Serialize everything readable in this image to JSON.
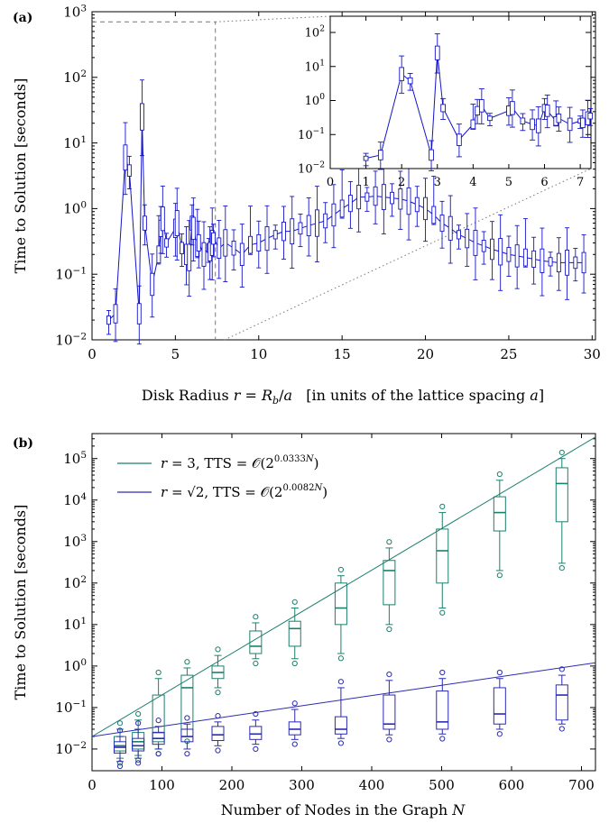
{
  "chart_data": [
    {
      "panel_label": "(a)",
      "type": "line",
      "xlabel": "Disk Radius r = R_b/a   [in units of the lattice spacing a]",
      "xlabel_html": {
        "prefix": "Disk Radius ",
        "var_r": "r",
        "eq": " = ",
        "var_R": "R",
        "sub": "b",
        "slash": "/",
        "var_a": "a",
        "suffix": "   [in units of the lattice spacing ",
        "var_a2": "a",
        "close": "]"
      },
      "ylabel": "Time to Solution [seconds]",
      "xlim": [
        0,
        30.2
      ],
      "ylim": [
        0.01,
        1000
      ],
      "y_scale": "log",
      "xticks": [
        0,
        5,
        10,
        15,
        20,
        25,
        30
      ],
      "yticks": [
        0.01,
        0.1,
        1,
        10,
        100,
        1000
      ],
      "color": "#1414c8",
      "x": [
        1.0,
        1.41,
        2.0,
        2.24,
        2.83,
        3.0,
        3.16,
        3.61,
        4.0,
        4.12,
        4.24,
        4.47,
        5.0,
        5.1,
        5.39,
        5.66,
        5.83,
        6.0,
        6.08,
        6.32,
        6.4,
        6.71,
        7.0,
        7.07,
        7.21,
        7.28,
        7.62,
        8.0,
        8.5,
        9.0,
        9.5,
        10.0,
        10.5,
        11.0,
        11.5,
        12.0,
        12.5,
        13.0,
        13.5,
        14.0,
        14.5,
        15.0,
        15.5,
        16.0,
        16.5,
        17.0,
        17.5,
        18.0,
        18.5,
        19.0,
        19.5,
        20.0,
        20.5,
        21.0,
        21.5,
        22.0,
        22.5,
        23.0,
        23.5,
        24.0,
        24.5,
        25.0,
        25.5,
        26.0,
        26.5,
        27.0,
        27.5,
        28.0,
        28.5,
        29.0,
        29.5
      ],
      "y": [
        0.02,
        0.025,
        6.0,
        3.8,
        0.025,
        25.0,
        0.6,
        0.07,
        0.2,
        0.5,
        0.7,
        0.3,
        0.5,
        0.6,
        0.25,
        0.2,
        0.18,
        0.6,
        0.5,
        0.25,
        0.3,
        0.2,
        0.25,
        0.22,
        0.3,
        0.35,
        0.25,
        0.3,
        0.25,
        0.2,
        0.28,
        0.3,
        0.35,
        0.4,
        0.45,
        0.45,
        0.5,
        0.55,
        0.6,
        0.65,
        0.8,
        1.0,
        1.2,
        1.5,
        1.5,
        1.55,
        1.5,
        1.45,
        1.4,
        1.3,
        1.15,
        1.0,
        0.8,
        0.6,
        0.5,
        0.4,
        0.35,
        0.3,
        0.27,
        0.24,
        0.22,
        0.2,
        0.19,
        0.18,
        0.17,
        0.16,
        0.155,
        0.15,
        0.15,
        0.15,
        0.15
      ],
      "inset": {
        "xlim": [
          0,
          7.3
        ],
        "ylim": [
          0.01,
          300
        ],
        "xticks": [
          0,
          1,
          2,
          3,
          4,
          5,
          6,
          7
        ],
        "yticks": [
          0.01,
          0.1,
          1,
          10,
          100
        ]
      },
      "zoom_box": {
        "x_max": 7.4,
        "y_max": 700
      }
    },
    {
      "panel_label": "(b)",
      "type": "box",
      "xlabel": "Number of Nodes in the Graph N",
      "xlabel_html": {
        "prefix": "Number of Nodes in the Graph ",
        "var": "N"
      },
      "ylabel": "Time to Solution [seconds]",
      "xlim": [
        0,
        720
      ],
      "ylim": [
        0.003,
        400000
      ],
      "y_scale": "log",
      "xticks": [
        0,
        100,
        200,
        300,
        400,
        500,
        600,
        700
      ],
      "yticks": [
        0.01,
        0.1,
        1,
        10,
        100,
        1000,
        10000,
        100000
      ],
      "legend_position": "top-left",
      "series": [
        {
          "name": "r = 3, TTS = O(2^{0.0333N})",
          "legend": {
            "lhs": "r",
            "eq": " = 3, TTS = ",
            "calO": "𝒪",
            "open": "(2",
            "exp": "0.0333",
            "expvar": "N",
            "close": ")"
          },
          "color": "#1b7f6e",
          "fit": {
            "base": 2,
            "rate": 0.0333,
            "intercept_at_0": 0.02
          },
          "x": [
            40,
            66,
            95,
            136,
            180,
            234,
            290,
            356,
            425,
            501,
            583,
            672
          ],
          "box": [
            {
              "min": 0.006,
              "q1": 0.009,
              "med": 0.012,
              "q3": 0.02,
              "max": 0.03
            },
            {
              "min": 0.007,
              "q1": 0.01,
              "med": 0.015,
              "q3": 0.025,
              "max": 0.05
            },
            {
              "min": 0.01,
              "q1": 0.015,
              "med": 0.025,
              "q3": 0.2,
              "max": 0.5
            },
            {
              "min": 0.02,
              "q1": 0.03,
              "med": 0.3,
              "q3": 0.6,
              "max": 0.9
            },
            {
              "min": 0.3,
              "q1": 0.5,
              "med": 0.7,
              "q3": 1.0,
              "max": 1.8
            },
            {
              "min": 1.5,
              "q1": 2.0,
              "med": 3.0,
              "q3": 7.0,
              "max": 11
            },
            {
              "min": 1.5,
              "q1": 3.0,
              "med": 8.0,
              "q3": 12,
              "max": 25
            },
            {
              "min": 2.0,
              "q1": 10,
              "med": 25,
              "q3": 100,
              "max": 150
            },
            {
              "min": 10,
              "q1": 30,
              "med": 200,
              "q3": 350,
              "max": 700
            },
            {
              "min": 25,
              "q1": 100,
              "med": 600,
              "q3": 2000,
              "max": 5000
            },
            {
              "min": 200,
              "q1": 1800,
              "med": 5000,
              "q3": 12000,
              "max": 30000
            },
            {
              "min": 300,
              "q1": 3000,
              "med": 25000,
              "q3": 60000,
              "max": 100000
            }
          ]
        },
        {
          "name": "r = √2, TTS = O(2^{0.0082N})",
          "legend": {
            "lhs": "r",
            "eq": " = ",
            "root": "√2",
            "rest": ", TTS = ",
            "calO": "𝒪",
            "open": "(2",
            "exp": "0.0082",
            "expvar": "N",
            "close": ")"
          },
          "color": "#2a2ab4",
          "fit": {
            "base": 2,
            "rate": 0.0082,
            "intercept_at_0": 0.02
          },
          "x": [
            40,
            66,
            95,
            136,
            180,
            234,
            290,
            356,
            425,
            501,
            583,
            672
          ],
          "box": [
            {
              "min": 0.005,
              "q1": 0.008,
              "med": 0.011,
              "q3": 0.015,
              "max": 0.02
            },
            {
              "min": 0.006,
              "q1": 0.009,
              "med": 0.012,
              "q3": 0.018,
              "max": 0.03
            },
            {
              "min": 0.01,
              "q1": 0.013,
              "med": 0.018,
              "q3": 0.025,
              "max": 0.035
            },
            {
              "min": 0.01,
              "q1": 0.015,
              "med": 0.02,
              "q3": 0.03,
              "max": 0.04
            },
            {
              "min": 0.012,
              "q1": 0.016,
              "med": 0.022,
              "q3": 0.035,
              "max": 0.045
            },
            {
              "min": 0.013,
              "q1": 0.017,
              "med": 0.023,
              "q3": 0.035,
              "max": 0.05
            },
            {
              "min": 0.017,
              "q1": 0.022,
              "med": 0.03,
              "q3": 0.045,
              "max": 0.09
            },
            {
              "min": 0.018,
              "q1": 0.023,
              "med": 0.03,
              "q3": 0.06,
              "max": 0.3
            },
            {
              "min": 0.022,
              "q1": 0.03,
              "med": 0.04,
              "q3": 0.2,
              "max": 0.45
            },
            {
              "min": 0.023,
              "q1": 0.03,
              "med": 0.045,
              "q3": 0.25,
              "max": 0.5
            },
            {
              "min": 0.03,
              "q1": 0.04,
              "med": 0.07,
              "q3": 0.3,
              "max": 0.5
            },
            {
              "min": 0.04,
              "q1": 0.05,
              "med": 0.2,
              "q3": 0.35,
              "max": 0.6
            }
          ]
        }
      ]
    }
  ]
}
